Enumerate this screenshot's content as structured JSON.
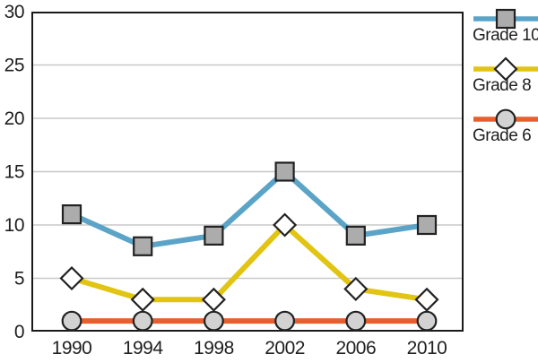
{
  "chart_data": {
    "type": "line",
    "title": "",
    "xlabel": "",
    "ylabel": "",
    "categories": [
      "1990",
      "1994",
      "1998",
      "2002",
      "2006",
      "2010"
    ],
    "series": [
      {
        "name": "Grade 10",
        "values": [
          11,
          8,
          9,
          15,
          9,
          10
        ],
        "color": "#5BA4C8",
        "marker": "square",
        "marker_fill": "#ACACAC"
      },
      {
        "name": "Grade 8",
        "values": [
          5,
          3,
          3,
          10,
          4,
          3
        ],
        "color": "#E2C413",
        "marker": "diamond",
        "marker_fill": "#FFFFFF"
      },
      {
        "name": "Grade 6",
        "values": [
          1,
          1,
          1,
          1,
          1,
          1
        ],
        "color": "#E65F2E",
        "marker": "circle",
        "marker_fill": "#D2D2D2"
      }
    ],
    "ylim": [
      0,
      30
    ],
    "yticks": [
      0,
      5,
      10,
      15,
      20,
      25,
      30
    ],
    "grid": true,
    "legend_position": "right"
  },
  "colors": {
    "grid": "#C8C8C8",
    "axis": "#1A1A1A",
    "tick_text": "#1F1F1F",
    "marker_stroke": "#222222",
    "background": "#FFFFFF"
  }
}
